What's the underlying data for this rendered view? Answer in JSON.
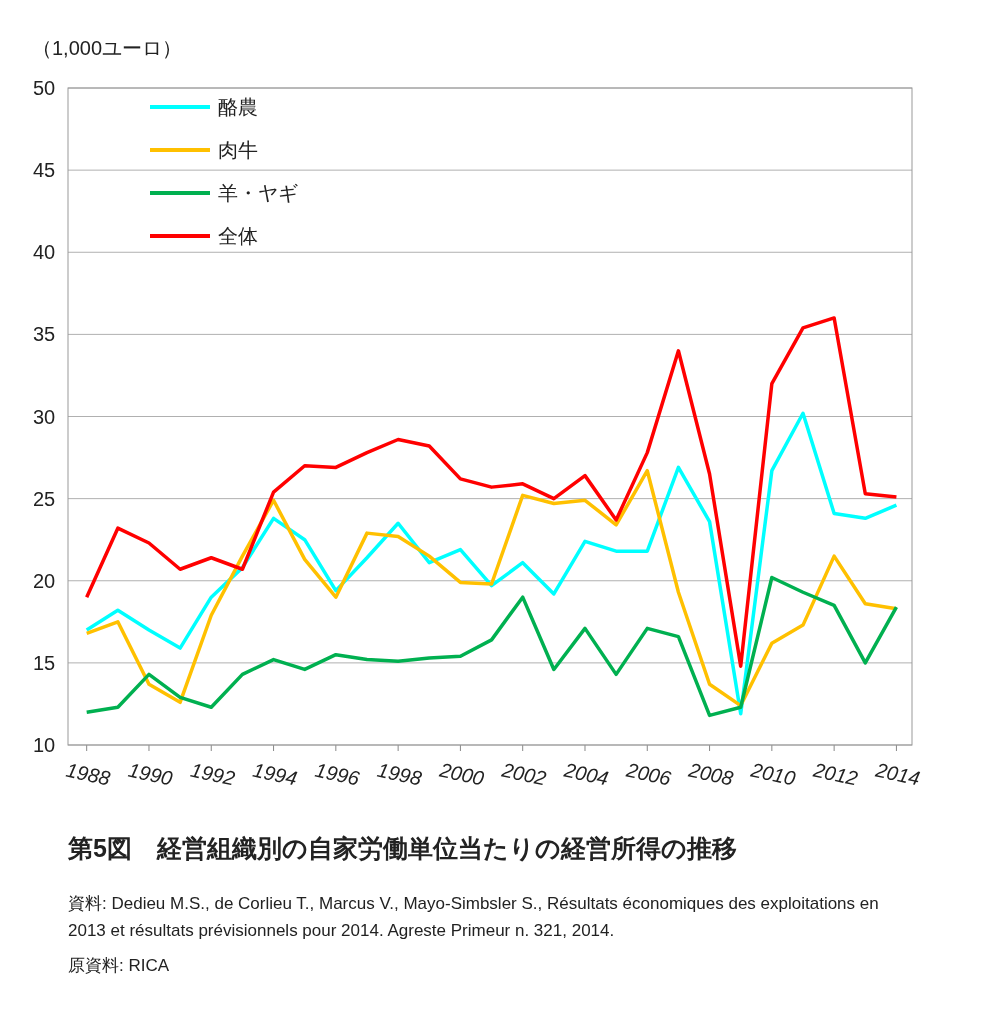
{
  "chart_data": {
    "type": "line",
    "title": "第5図　経営組織別の自家労働単位当たりの経営所得の推移",
    "ylabel": "（1,000ユーロ）",
    "x": [
      1988,
      1989,
      1990,
      1991,
      1992,
      1993,
      1994,
      1995,
      1996,
      1997,
      1998,
      1999,
      2000,
      2001,
      2002,
      2003,
      2004,
      2005,
      2006,
      2007,
      2008,
      2009,
      2010,
      2011,
      2012,
      2013,
      2014
    ],
    "xlim": [
      1987.4,
      2014.5
    ],
    "xticks": [
      1988,
      1990,
      1992,
      1994,
      1996,
      1998,
      2000,
      2002,
      2004,
      2006,
      2008,
      2010,
      2012,
      2014
    ],
    "ylim": [
      10,
      50
    ],
    "yticks": [
      10,
      15,
      20,
      25,
      30,
      35,
      40,
      45,
      50
    ],
    "grid": "y",
    "legend": "top left",
    "marker": "none",
    "line_style": "solid",
    "series": [
      {
        "name": "酪農",
        "color": "#00ffff",
        "values": [
          17.0,
          18.2,
          17.0,
          15.9,
          19.0,
          20.8,
          23.8,
          22.5,
          19.4,
          21.4,
          23.5,
          21.1,
          21.9,
          19.7,
          21.1,
          19.2,
          22.4,
          21.8,
          21.8,
          26.9,
          23.6,
          11.9,
          26.7,
          30.2,
          24.1,
          23.8,
          24.6
        ]
      },
      {
        "name": "肉牛",
        "color": "#ffc000",
        "values": [
          16.8,
          17.5,
          13.7,
          12.6,
          17.9,
          21.5,
          24.9,
          21.3,
          19.0,
          22.9,
          22.7,
          21.5,
          19.9,
          19.8,
          25.2,
          24.7,
          24.9,
          23.4,
          26.7,
          19.3,
          13.7,
          12.4,
          16.2,
          17.3,
          21.5,
          18.6,
          18.3
        ]
      },
      {
        "name": "羊・ヤギ",
        "color": "#00b050",
        "values": [
          12.0,
          12.3,
          14.3,
          12.9,
          12.3,
          14.3,
          15.2,
          14.6,
          15.5,
          15.2,
          15.1,
          15.3,
          15.4,
          16.4,
          19.0,
          14.6,
          17.1,
          14.3,
          17.1,
          16.6,
          11.8,
          12.3,
          20.2,
          19.3,
          18.5,
          15.0,
          18.4
        ]
      },
      {
        "name": "全体",
        "color": "#ff0000",
        "values": [
          19.0,
          23.2,
          22.3,
          20.7,
          21.4,
          20.7,
          25.4,
          27.0,
          26.9,
          27.8,
          28.6,
          28.2,
          26.2,
          25.7,
          25.9,
          25.0,
          26.4,
          23.7,
          27.8,
          34.0,
          26.5,
          14.8,
          32.0,
          35.4,
          36.0,
          25.3,
          25.1
        ]
      }
    ],
    "annotations": [
      "資料: Dedieu M.S., de Corlieu T., Marcus V., Mayo-Simbsler S., Résultats économiques des exploitations en 2013 et résultats prévisionnels pour 2014. Agreste Primeur n. 321, 2014.",
      "原資料: RICA"
    ]
  }
}
